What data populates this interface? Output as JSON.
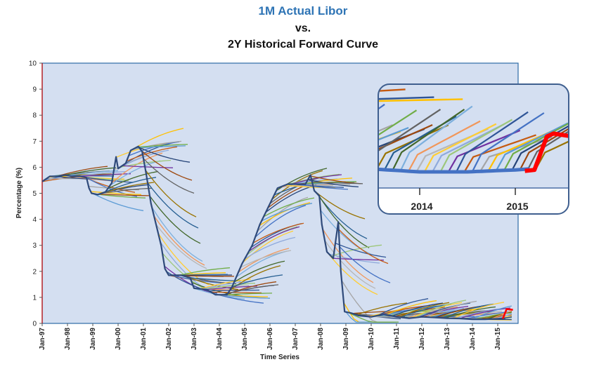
{
  "chart_data": {
    "type": "line",
    "title": "1M Actual Libor",
    "subtitle_lines": [
      "vs.",
      "2Y Historical Forward Curve"
    ],
    "xlabel": "Time Series",
    "ylabel": "Percentage (%)",
    "ylim": [
      0,
      10
    ],
    "y_ticks": [
      "0",
      "1",
      "2",
      "3",
      "4",
      "5",
      "6",
      "7",
      "8",
      "9",
      "10"
    ],
    "x_ticks": [
      "Jan-97",
      "Jan-98",
      "Jan-99",
      "Jan-00",
      "Jan-01",
      "Jan-02",
      "Jan-03",
      "Jan-04",
      "Jan-05",
      "Jan-06",
      "Jan-07",
      "Jan-08",
      "Jan-09",
      "Jan-10",
      "Jan-11",
      "Jan-12",
      "Jan-13",
      "Jan-14",
      "Jan-15"
    ],
    "xlim": [
      1997.0,
      2015.6
    ],
    "grid": false,
    "legend": "none",
    "series": [
      {
        "role": "1M Actual Libor",
        "color": "#2f4a7a",
        "points": [
          [
            1997.0,
            5.45
          ],
          [
            1997.3,
            5.65
          ],
          [
            1997.6,
            5.65
          ],
          [
            1997.9,
            5.7
          ],
          [
            1998.2,
            5.65
          ],
          [
            1998.5,
            5.65
          ],
          [
            1998.75,
            5.6
          ],
          [
            1998.85,
            5.2
          ],
          [
            1998.95,
            5.0
          ],
          [
            1999.2,
            4.95
          ],
          [
            1999.5,
            5.05
          ],
          [
            1999.75,
            5.4
          ],
          [
            1999.92,
            6.4
          ],
          [
            2000.0,
            5.95
          ],
          [
            2000.3,
            6.15
          ],
          [
            2000.5,
            6.65
          ],
          [
            2000.8,
            6.8
          ],
          [
            2000.95,
            6.6
          ],
          [
            2001.1,
            5.8
          ],
          [
            2001.3,
            4.6
          ],
          [
            2001.5,
            3.8
          ],
          [
            2001.7,
            3.0
          ],
          [
            2001.85,
            2.1
          ],
          [
            2002.0,
            1.85
          ],
          [
            2002.5,
            1.85
          ],
          [
            2002.85,
            1.75
          ],
          [
            2003.0,
            1.35
          ],
          [
            2003.5,
            1.3
          ],
          [
            2003.85,
            1.1
          ],
          [
            2004.3,
            1.1
          ],
          [
            2004.5,
            1.4
          ],
          [
            2004.9,
            2.3
          ],
          [
            2005.3,
            3.0
          ],
          [
            2005.6,
            3.8
          ],
          [
            2006.0,
            4.6
          ],
          [
            2006.3,
            5.2
          ],
          [
            2006.7,
            5.35
          ],
          [
            2007.0,
            5.35
          ],
          [
            2007.4,
            5.35
          ],
          [
            2007.6,
            5.7
          ],
          [
            2007.75,
            5.1
          ],
          [
            2007.95,
            4.9
          ],
          [
            2008.05,
            3.8
          ],
          [
            2008.25,
            2.75
          ],
          [
            2008.5,
            2.5
          ],
          [
            2008.7,
            3.9
          ],
          [
            2008.8,
            2.0
          ],
          [
            2008.95,
            0.45
          ],
          [
            2009.2,
            0.4
          ],
          [
            2009.5,
            0.3
          ],
          [
            2010.0,
            0.25
          ],
          [
            2010.5,
            0.35
          ],
          [
            2011.0,
            0.25
          ],
          [
            2011.5,
            0.2
          ],
          [
            2012.0,
            0.25
          ],
          [
            2012.5,
            0.23
          ],
          [
            2013.0,
            0.2
          ],
          [
            2013.5,
            0.19
          ],
          [
            2014.0,
            0.16
          ],
          [
            2014.5,
            0.16
          ],
          [
            2015.0,
            0.18
          ],
          [
            2015.3,
            0.2
          ]
        ]
      },
      {
        "role": "Actual Libor (recent)",
        "color": "#ff0000",
        "points": [
          [
            2015.2,
            0.18
          ],
          [
            2015.35,
            0.55
          ],
          [
            2015.6,
            0.52
          ]
        ]
      }
    ],
    "forward_curves": "Approximately one 2-year forward curve per month (1997–2015), each starting on the actual Libor line"
  },
  "inset": {
    "x_ticks": [
      "2014",
      "2015"
    ]
  },
  "colors": {
    "plot_bg": "#d4dff1",
    "plot_border": "#2e6ca6",
    "title_blue": "#2e74b5",
    "palette": [
      "#c55a11",
      "#4472c4",
      "#a5a5a5",
      "#ffc000",
      "#5b9bd5",
      "#70ad47",
      "#264478",
      "#9e480e",
      "#636363",
      "#997300",
      "#255e91",
      "#43682b",
      "#7cafdd",
      "#f1975a",
      "#b7b7b7",
      "#ffcd33",
      "#8faadc",
      "#9dc77a",
      "#7030a0",
      "#2f5597"
    ]
  }
}
